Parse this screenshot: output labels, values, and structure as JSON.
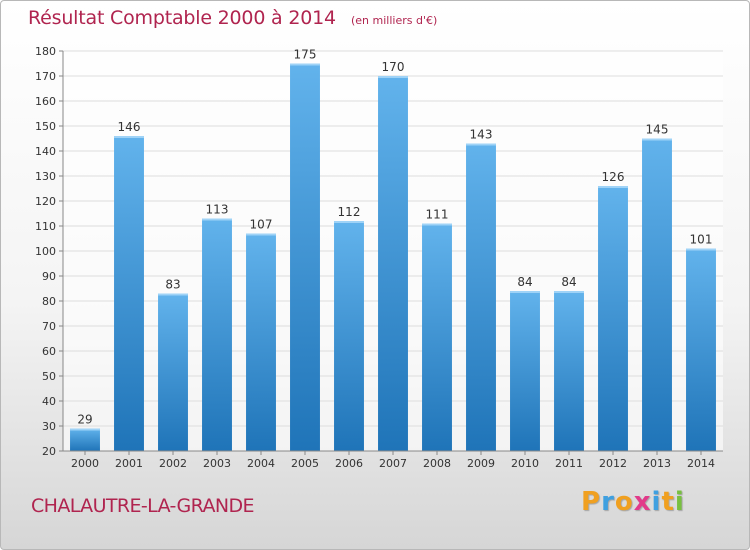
{
  "title": "Résultat Comptable 2000 à 2014",
  "unit_note": "(en milliers d'€)",
  "commune": "CHALAUTRE-LA-GRANDE",
  "brand": {
    "letters": [
      "P",
      "r",
      "o",
      "x",
      "i",
      "t",
      "i"
    ],
    "colors": [
      "#f0a020",
      "#3fa0e0",
      "#f0a020",
      "#e23a8a",
      "#3fa0e0",
      "#f0a020",
      "#78c040"
    ]
  },
  "colors": {
    "accent": "#b0244f",
    "bar_top": "#62b3ec",
    "bar_bottom": "#1f74b8",
    "grid": "#dddddd",
    "axis_text": "#333333"
  },
  "chart_data": {
    "type": "bar",
    "categories": [
      "2000",
      "2001",
      "2002",
      "2003",
      "2004",
      "2005",
      "2006",
      "2007",
      "2008",
      "2009",
      "2010",
      "2011",
      "2012",
      "2013",
      "2014"
    ],
    "values": [
      29,
      146,
      83,
      113,
      107,
      175,
      112,
      170,
      111,
      143,
      84,
      84,
      126,
      145,
      101
    ],
    "ylim": [
      20,
      180
    ],
    "yticks": [
      20,
      30,
      40,
      50,
      60,
      70,
      80,
      90,
      100,
      110,
      120,
      130,
      140,
      150,
      160,
      170,
      180
    ],
    "grid": true,
    "data_labels": true
  }
}
